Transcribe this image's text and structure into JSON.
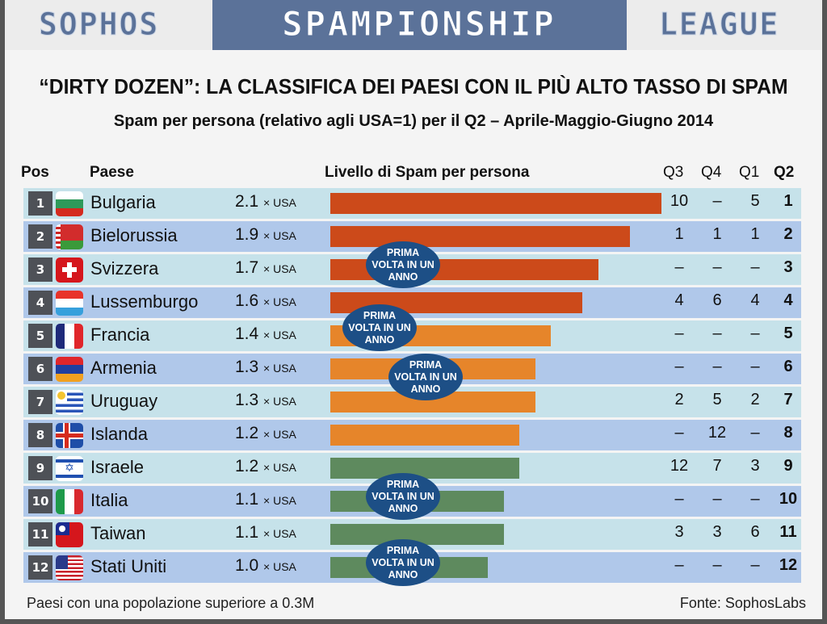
{
  "banner": {
    "left": "SOPHOS",
    "center": "SPAMPIONSHIP",
    "right": "LEAGUE"
  },
  "title": "“DIRTY DOZEN”: LA CLASSIFICA DEI PAESI CON IL PIÙ ALTO TASSO DI SPAM",
  "subtitle": "Spam per persona (relativo agli USA=1) per il Q2 – Aprile-Maggio-Giugno 2014",
  "headers": {
    "pos": "Pos",
    "country": "Paese",
    "level": "Livello di Spam per persona",
    "q3": "Q3",
    "q4": "Q4",
    "q1": "Q1",
    "q2": "Q2"
  },
  "unit": "× USA",
  "badge_text": [
    "PRIMA",
    "VOLTA IN UN",
    "ANNO"
  ],
  "colors": {
    "red": "#cc4a1a",
    "orange": "#e6852a",
    "green": "#5e8a5e",
    "badge": "#1d4f86"
  },
  "rows": [
    {
      "pos": "1",
      "country": "Bulgaria",
      "mult": "2.1",
      "q3": "10",
      "q4": "–",
      "q1": "5",
      "q2": "1"
    },
    {
      "pos": "2",
      "country": "Bielorussia",
      "mult": "1.9",
      "q3": "1",
      "q4": "1",
      "q1": "1",
      "q2": "2"
    },
    {
      "pos": "3",
      "country": "Svizzera",
      "mult": "1.7",
      "q3": "–",
      "q4": "–",
      "q1": "–",
      "q2": "3"
    },
    {
      "pos": "4",
      "country": "Lussemburgo",
      "mult": "1.6",
      "q3": "4",
      "q4": "6",
      "q1": "4",
      "q2": "4"
    },
    {
      "pos": "5",
      "country": "Francia",
      "mult": "1.4",
      "q3": "–",
      "q4": "–",
      "q1": "–",
      "q2": "5"
    },
    {
      "pos": "6",
      "country": "Armenia",
      "mult": "1.3",
      "q3": "–",
      "q4": "–",
      "q1": "–",
      "q2": "6"
    },
    {
      "pos": "7",
      "country": "Uruguay",
      "mult": "1.3",
      "q3": "2",
      "q4": "5",
      "q1": "2",
      "q2": "7"
    },
    {
      "pos": "8",
      "country": "Islanda",
      "mult": "1.2",
      "q3": "–",
      "q4": "12",
      "q1": "–",
      "q2": "8"
    },
    {
      "pos": "9",
      "country": "Israele",
      "mult": "1.2",
      "q3": "12",
      "q4": "7",
      "q1": "3",
      "q2": "9"
    },
    {
      "pos": "10",
      "country": "Italia",
      "mult": "1.1",
      "q3": "–",
      "q4": "–",
      "q1": "–",
      "q2": "10"
    },
    {
      "pos": "11",
      "country": "Taiwan",
      "mult": "1.1",
      "q3": "3",
      "q4": "3",
      "q1": "6",
      "q2": "11"
    },
    {
      "pos": "12",
      "country": "Stati Uniti",
      "mult": "1.0",
      "q3": "–",
      "q4": "–",
      "q1": "–",
      "q2": "12"
    }
  ],
  "footer": {
    "left": "Paesi con una popolazione superiore a 0.3M",
    "right": "Fonte: SophosLabs"
  },
  "chart_data": {
    "type": "bar",
    "orientation": "horizontal",
    "title": "“DIRTY DOZEN”: LA CLASSIFICA DEI PAESI CON IL PIÙ ALTO TASSO DI SPAM",
    "subtitle": "Spam per persona (relativo agli USA=1) per il Q2 – Aprile-Maggio-Giugno 2014",
    "categories": [
      "Bulgaria",
      "Bielorussia",
      "Svizzera",
      "Lussemburgo",
      "Francia",
      "Armenia",
      "Uruguay",
      "Islanda",
      "Israele",
      "Italia",
      "Taiwan",
      "Stati Uniti"
    ],
    "values": [
      2.1,
      1.9,
      1.7,
      1.6,
      1.4,
      1.3,
      1.3,
      1.2,
      1.2,
      1.1,
      1.1,
      1.0
    ],
    "xlabel": "Livello di Spam per persona",
    "unit": "× USA",
    "previous_ranks": {
      "Q3": [
        "10",
        "1",
        "–",
        "4",
        "–",
        "–",
        "2",
        "–",
        "12",
        "–",
        "3",
        "–"
      ],
      "Q4": [
        "–",
        "1",
        "–",
        "6",
        "–",
        "–",
        "5",
        "12",
        "7",
        "–",
        "3",
        "–"
      ],
      "Q1": [
        "5",
        "1",
        "–",
        "4",
        "–",
        "–",
        "2",
        "–",
        "3",
        "–",
        "6",
        "–"
      ],
      "Q2": [
        "1",
        "2",
        "3",
        "4",
        "5",
        "6",
        "7",
        "8",
        "9",
        "10",
        "11",
        "12"
      ]
    },
    "annotations": [
      "PRIMA VOLTA IN UN ANNO: Svizzera",
      "PRIMA VOLTA IN UN ANNO: Francia",
      "PRIMA VOLTA IN UN ANNO: Armenia",
      "PRIMA VOLTA IN UN ANNO: Italia",
      "PRIMA VOLTA IN UN ANNO: Stati Uniti"
    ],
    "notes": [
      "Paesi con una popolazione superiore a 0.3M",
      "Fonte: SophosLabs"
    ]
  }
}
